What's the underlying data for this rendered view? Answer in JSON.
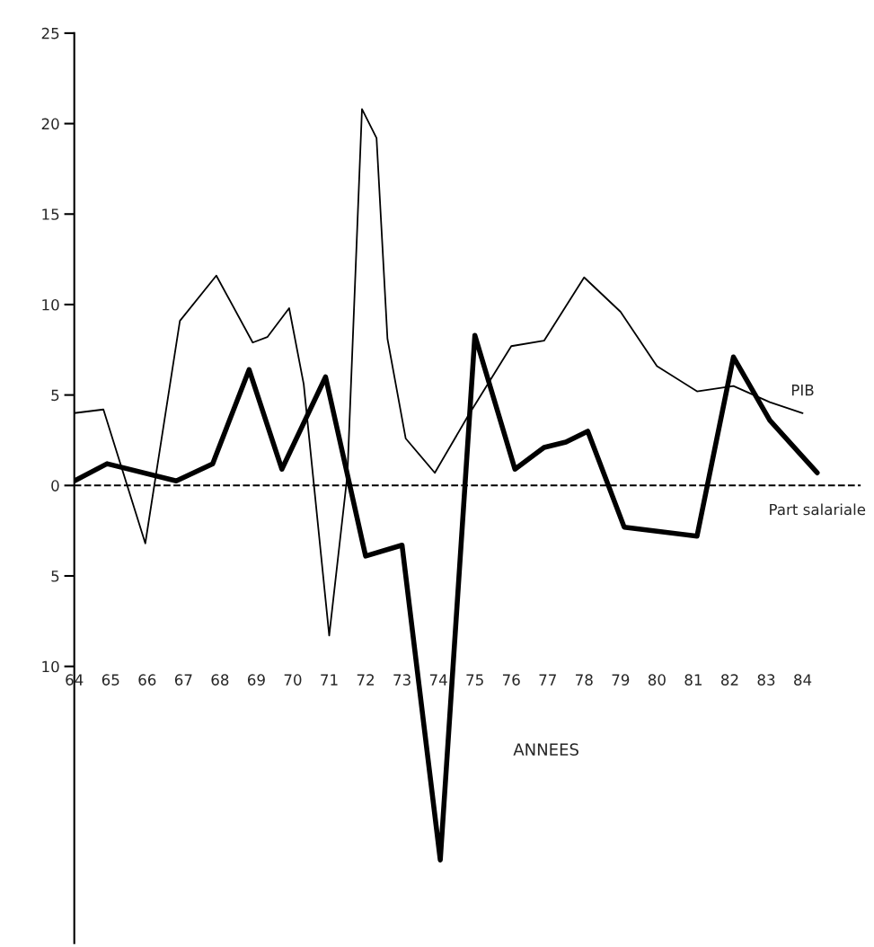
{
  "chart_data": {
    "type": "line",
    "xlabel": "ANNEES",
    "xlim": [
      64,
      85.6
    ],
    "ylim": [
      -25.3,
      25
    ],
    "xticks": [
      {
        "value": 64,
        "label": "64"
      },
      {
        "value": 65,
        "label": "65"
      },
      {
        "value": 66,
        "label": "66"
      },
      {
        "value": 67,
        "label": "67"
      },
      {
        "value": 68,
        "label": "68"
      },
      {
        "value": 69,
        "label": "69"
      },
      {
        "value": 70,
        "label": "70"
      },
      {
        "value": 71,
        "label": "71"
      },
      {
        "value": 72,
        "label": "72"
      },
      {
        "value": 73,
        "label": "73"
      },
      {
        "value": 74,
        "label": "74"
      },
      {
        "value": 75,
        "label": "75"
      },
      {
        "value": 76,
        "label": "76"
      },
      {
        "value": 77,
        "label": "77"
      },
      {
        "value": 78,
        "label": "78"
      },
      {
        "value": 79,
        "label": "79"
      },
      {
        "value": 80,
        "label": "80"
      },
      {
        "value": 81,
        "label": "81"
      },
      {
        "value": 82,
        "label": "82"
      },
      {
        "value": 83,
        "label": "83"
      },
      {
        "value": 84,
        "label": "84"
      }
    ],
    "yticks": [
      25,
      20,
      15,
      10,
      5,
      0,
      {
        "value": -5,
        "label": "5"
      },
      {
        "value": -10,
        "label": "10"
      }
    ],
    "series": [
      {
        "name": "PIB",
        "color": "#000000",
        "x": [
          64,
          64.8,
          65.95,
          66.9,
          67.9,
          68.9,
          69.3,
          69.9,
          70.3,
          71.0,
          71.5,
          71.9,
          72.3,
          72.6,
          73.1,
          73.9,
          74.8,
          76.0,
          76.9,
          78.0,
          79.0,
          80.0,
          81.1,
          82.1,
          83.1,
          84.0
        ],
        "values": [
          4.0,
          4.2,
          -3.2,
          9.1,
          11.6,
          7.9,
          8.2,
          9.8,
          5.6,
          -8.3,
          0.6,
          20.8,
          19.2,
          8.1,
          2.6,
          0.7,
          3.8,
          7.7,
          8.0,
          11.5,
          9.6,
          6.6,
          5.2,
          5.5,
          4.6,
          4.0
        ]
      },
      {
        "name": "Part salariale",
        "color": "#000000",
        "x": [
          64,
          64.9,
          66.8,
          67.8,
          68.8,
          69.7,
          70.9,
          72.0,
          73.0,
          74.05,
          75.0,
          76.1,
          76.9,
          77.5,
          78.1,
          79.1,
          81.1,
          82.1,
          83.1,
          84.4
        ],
        "values": [
          0.25,
          1.2,
          0.25,
          1.2,
          6.4,
          0.9,
          6.0,
          -3.9,
          -3.3,
          -20.7,
          8.3,
          0.9,
          2.1,
          2.4,
          3.0,
          -2.3,
          -2.8,
          7.1,
          3.6,
          0.7
        ]
      }
    ],
    "ref_lines": [
      {
        "axis": "y",
        "value": 0,
        "color": "#000000",
        "line_style": "dashed"
      }
    ],
    "grid": false,
    "legend": false,
    "marker": "none",
    "line_style": "solid"
  }
}
